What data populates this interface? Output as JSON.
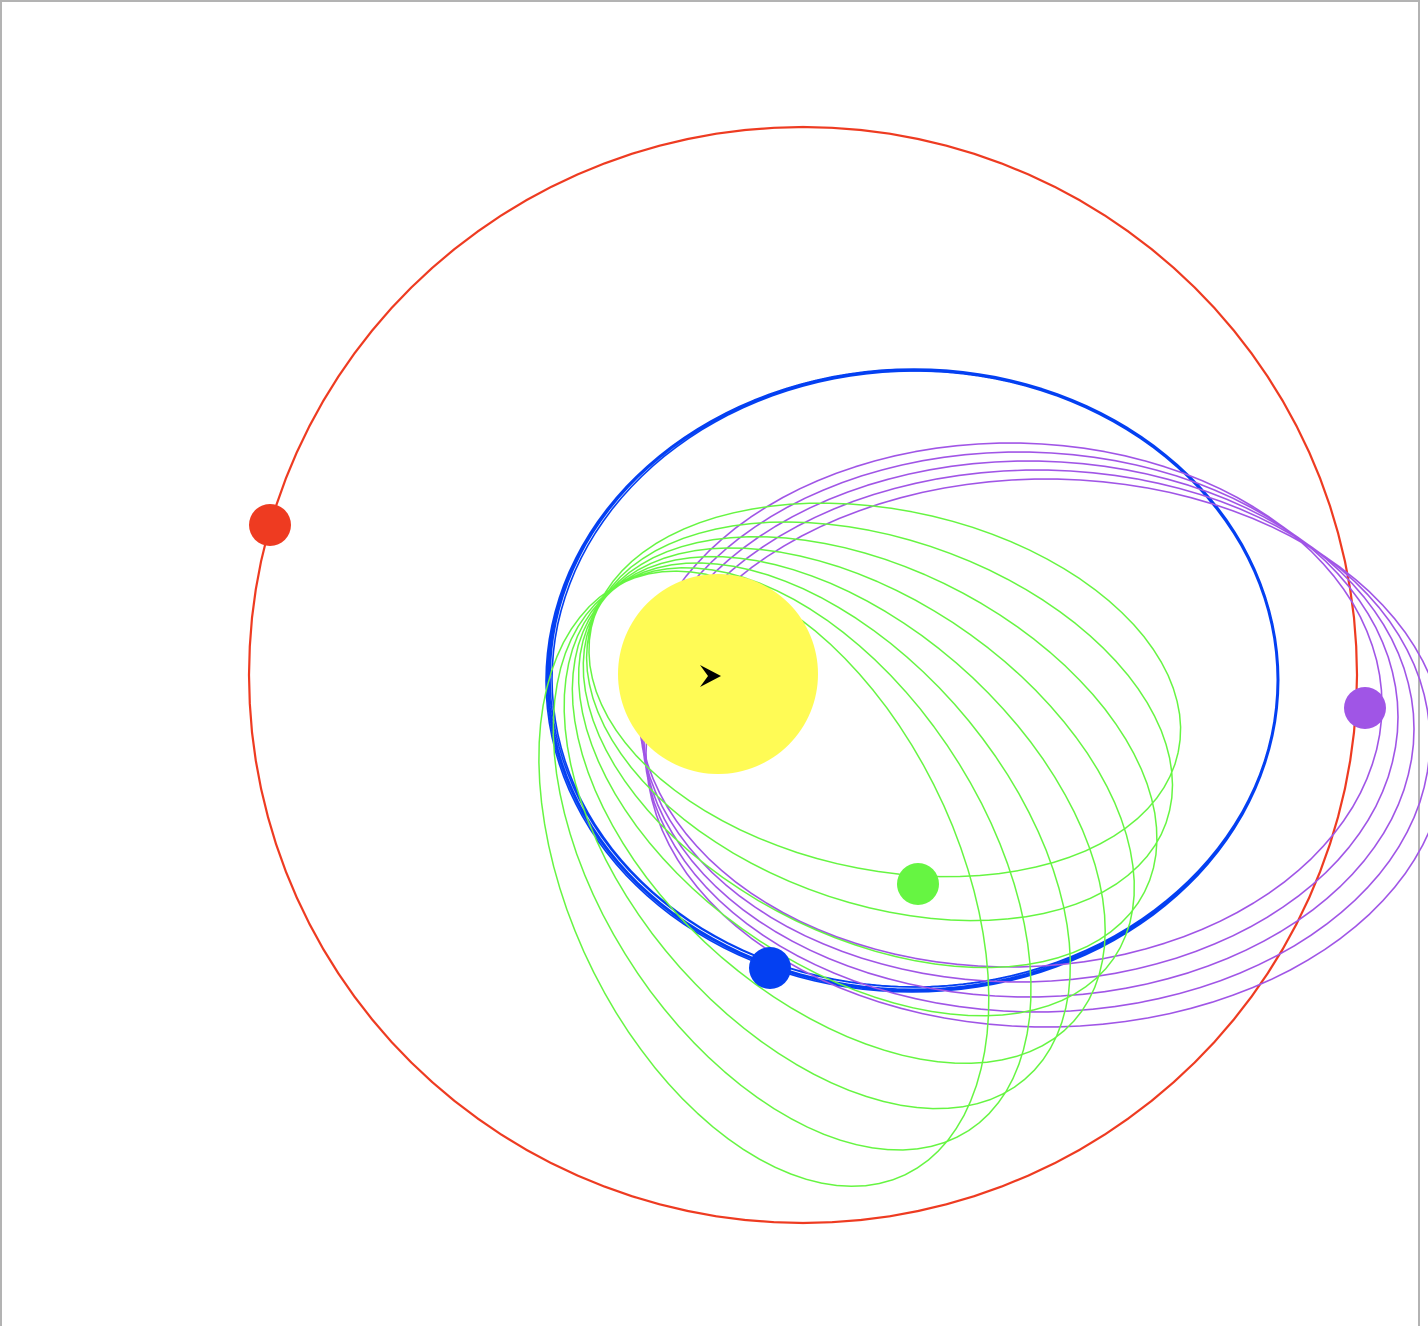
{
  "simulation": {
    "background": "#ffffff",
    "border_color": "#b3b3b3",
    "bodies": [
      {
        "id": "sun",
        "role": "star",
        "color": "#fffb55"
      },
      {
        "id": "red-planet",
        "role": "planet",
        "color": "#ee3b21"
      },
      {
        "id": "blue-planet",
        "role": "planet",
        "color": "#0440f2"
      },
      {
        "id": "purple-planet",
        "role": "planet",
        "color": "#a055e6"
      },
      {
        "id": "green-planet",
        "role": "planet",
        "color": "#66f542"
      }
    ],
    "cursor_icon": "arrow-cursor-icon"
  }
}
